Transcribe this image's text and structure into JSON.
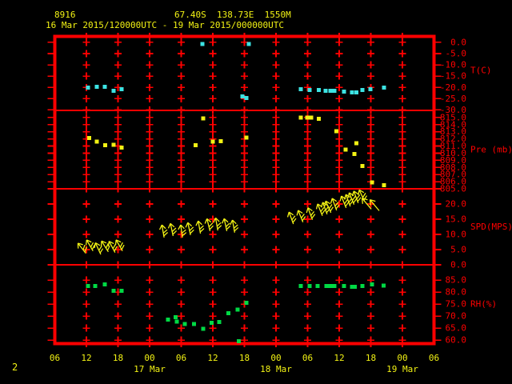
{
  "header": {
    "station_id": "8916",
    "location_line": "67.40S  138.73E  1550M",
    "time_range": "16 Mar 2015/120000UTC - 19 Mar 2015/000000UTC"
  },
  "footer": {
    "page_number": "2"
  },
  "colors": {
    "background": "#000000",
    "frame": "#ff0000",
    "axis_text": "#ff0000",
    "header_text": "#f2f214",
    "time_text": "#f2f214",
    "temperature": "#3ce3e3",
    "pressure": "#f2f214",
    "wind": "#f2f214",
    "humidity": "#00d944"
  },
  "chart_data": {
    "type": "scatter",
    "description": "Station meteogram, 4 stacked panels vs time (hours UTC from 16 Mar 2015 06UTC to 19 Mar 2015 06UTC)",
    "x_axis": {
      "hours_span": 72,
      "hour_tick_step": 6,
      "hour_ticks": [
        "06",
        "12",
        "18",
        "00",
        "06",
        "12",
        "18",
        "00",
        "06",
        "12",
        "18",
        "00",
        "06"
      ],
      "date_labels": [
        {
          "hour": 18,
          "label": "17 Mar"
        },
        {
          "hour": 42,
          "label": "18 Mar"
        },
        {
          "hour": 66,
          "label": "19 Mar"
        }
      ]
    },
    "panels": [
      {
        "id": "temperature",
        "ylabel": "T(C)",
        "ylabel_v": -12.5,
        "ylim": [
          -30.2,
          2.1
        ],
        "ticks": [
          [
            "0.0",
            0
          ],
          [
            "-5.0",
            -5
          ],
          [
            "-10.0",
            -10
          ],
          [
            "-15.0",
            -15
          ],
          [
            "-20.0",
            -20
          ],
          [
            "-25.0",
            -25
          ],
          [
            "-30.0",
            -30
          ]
        ],
        "color_key": "temperature",
        "points": [
          [
            6.3,
            -20.1
          ],
          [
            8.0,
            -19.8
          ],
          [
            9.5,
            -19.8
          ],
          [
            11.2,
            -21.5
          ],
          [
            12.7,
            -20.8
          ],
          [
            28.0,
            -0.7
          ],
          [
            35.6,
            -24.0
          ],
          [
            36.4,
            -24.7
          ],
          [
            36.8,
            -0.7
          ],
          [
            46.7,
            -20.8
          ],
          [
            48.4,
            -21.2
          ],
          [
            50.1,
            -21.2
          ],
          [
            51.4,
            -21.5
          ],
          [
            52.3,
            -21.5
          ],
          [
            53.1,
            -21.5
          ],
          [
            54.9,
            -21.9
          ],
          [
            56.4,
            -22.2
          ],
          [
            57.3,
            -22.2
          ],
          [
            58.4,
            -21.2
          ],
          [
            59.9,
            -20.8
          ],
          [
            62.5,
            -20.1
          ]
        ]
      },
      {
        "id": "pressure",
        "ylabel": "Pre (mb)",
        "ylabel_v": 810.5,
        "ylim": [
          805,
          816
        ],
        "ticks": [
          [
            "815.0",
            815
          ],
          [
            "814.0",
            814
          ],
          [
            "813.0",
            813
          ],
          [
            "812.0",
            812
          ],
          [
            "811.0",
            811
          ],
          [
            "810.0",
            810
          ],
          [
            "809.0",
            809
          ],
          [
            "808.0",
            808
          ],
          [
            "807.0",
            807
          ],
          [
            "806.0",
            806
          ],
          [
            "805.0",
            805
          ]
        ],
        "color_key": "pressure",
        "points": [
          [
            6.5,
            812.1
          ],
          [
            8.0,
            811.6
          ],
          [
            9.6,
            811.1
          ],
          [
            11.2,
            811.2
          ],
          [
            12.7,
            810.8
          ],
          [
            26.7,
            811.1
          ],
          [
            28.2,
            814.9
          ],
          [
            30.0,
            811.6
          ],
          [
            31.5,
            811.7
          ],
          [
            36.4,
            812.2
          ],
          [
            46.7,
            815.0
          ],
          [
            47.9,
            815.0
          ],
          [
            48.7,
            815.0
          ],
          [
            50.1,
            814.8
          ],
          [
            53.5,
            813.1
          ],
          [
            55.2,
            810.5
          ],
          [
            56.9,
            809.9
          ],
          [
            57.3,
            811.4
          ],
          [
            58.4,
            808.2
          ],
          [
            60.2,
            805.9
          ],
          [
            62.5,
            805.5
          ]
        ]
      },
      {
        "id": "wind_speed",
        "ylabel": "SPD(MPS)",
        "ylabel_v": 12.5,
        "ylim": [
          0,
          25
        ],
        "ticks": [
          [
            "20.0",
            20
          ],
          [
            "15.0",
            15
          ],
          [
            "10.0",
            10
          ],
          [
            "5.0",
            5
          ],
          [
            "0.0",
            0
          ]
        ],
        "color_key": "wind",
        "barbs": [
          [
            5.7,
            4.2,
            -38,
            2
          ],
          [
            7.1,
            5.0,
            -30,
            2
          ],
          [
            8.6,
            3.9,
            -25,
            2
          ],
          [
            10.0,
            4.7,
            -32,
            2
          ],
          [
            11.3,
            4.5,
            -28,
            2
          ],
          [
            12.7,
            5.0,
            -30,
            2
          ],
          [
            20.7,
            9.5,
            -10,
            2
          ],
          [
            22.4,
            10.0,
            -12,
            2
          ],
          [
            24.2,
            9.5,
            -8,
            2
          ],
          [
            25.7,
            10.3,
            -12,
            2
          ],
          [
            27.6,
            10.8,
            -10,
            2
          ],
          [
            29.4,
            11.6,
            -14,
            2
          ],
          [
            30.9,
            11.8,
            -10,
            2
          ],
          [
            32.6,
            11.6,
            -12,
            2
          ],
          [
            34.1,
            11.1,
            -10,
            2
          ],
          [
            45.2,
            13.9,
            -20,
            2
          ],
          [
            47.0,
            14.5,
            -22,
            2
          ],
          [
            48.8,
            15.3,
            -20,
            2
          ],
          [
            50.7,
            16.6,
            -22,
            2
          ],
          [
            51.6,
            17.1,
            -20,
            2
          ],
          [
            52.3,
            17.6,
            -24,
            2
          ],
          [
            53.4,
            18.4,
            -20,
            2
          ],
          [
            55.2,
            19.2,
            -22,
            2
          ],
          [
            56.0,
            19.7,
            -20,
            2
          ],
          [
            56.7,
            20.3,
            -22,
            2
          ],
          [
            57.5,
            20.8,
            -20,
            2
          ],
          [
            58.7,
            21.3,
            -25,
            2
          ],
          [
            59.8,
            18.9,
            -40,
            0
          ],
          [
            61.3,
            18.4,
            -40,
            0
          ]
        ]
      },
      {
        "id": "humidity",
        "ylabel": "RH(%)",
        "ylabel_v": 75,
        "ylim": [
          58.4,
          91.4
        ],
        "ticks": [
          [
            "85.0",
            85
          ],
          [
            "80.0",
            80
          ],
          [
            "75.0",
            75
          ],
          [
            "70.0",
            70
          ],
          [
            "65.0",
            65
          ],
          [
            "60.0",
            60
          ]
        ],
        "color_key": "humidity",
        "points": [
          [
            6.3,
            82.5
          ],
          [
            7.7,
            82.5
          ],
          [
            9.5,
            83.2
          ],
          [
            11.2,
            80.5
          ],
          [
            12.7,
            80.5
          ],
          [
            21.5,
            68.5
          ],
          [
            22.9,
            69.5
          ],
          [
            23.2,
            67.8
          ],
          [
            24.7,
            66.8
          ],
          [
            26.4,
            66.8
          ],
          [
            28.2,
            64.8
          ],
          [
            29.8,
            67.2
          ],
          [
            31.2,
            67.5
          ],
          [
            33.0,
            71.2
          ],
          [
            34.7,
            72.8
          ],
          [
            34.9,
            59.5
          ],
          [
            36.4,
            75.5
          ],
          [
            46.7,
            82.5
          ],
          [
            48.4,
            82.5
          ],
          [
            49.9,
            82.5
          ],
          [
            51.6,
            82.5
          ],
          [
            52.3,
            82.5
          ],
          [
            53.1,
            82.5
          ],
          [
            54.9,
            82.5
          ],
          [
            56.4,
            82.2
          ],
          [
            57.0,
            82.2
          ],
          [
            58.4,
            82.5
          ],
          [
            60.2,
            83.2
          ],
          [
            62.4,
            82.8
          ]
        ]
      }
    ]
  }
}
